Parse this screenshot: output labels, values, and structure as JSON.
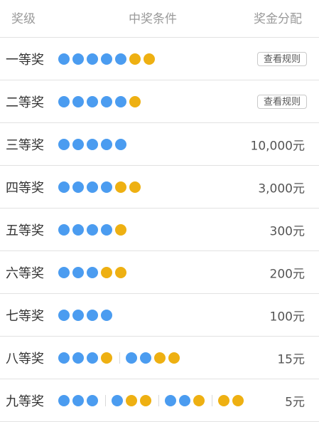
{
  "header": {
    "level": "奖级",
    "condition": "中奖条件",
    "prize": "奖金分配"
  },
  "colors": {
    "blue": "#4b9cf0",
    "gold": "#eeb012"
  },
  "rows": [
    {
      "level": "一等奖",
      "groups": [
        [
          "blue",
          "blue",
          "blue",
          "blue",
          "blue",
          "gold",
          "gold"
        ]
      ],
      "prize": "",
      "button": "查看规则"
    },
    {
      "level": "二等奖",
      "groups": [
        [
          "blue",
          "blue",
          "blue",
          "blue",
          "blue",
          "gold"
        ]
      ],
      "prize": "",
      "button": "查看规则"
    },
    {
      "level": "三等奖",
      "groups": [
        [
          "blue",
          "blue",
          "blue",
          "blue",
          "blue"
        ]
      ],
      "prize": "10,000元",
      "button": ""
    },
    {
      "level": "四等奖",
      "groups": [
        [
          "blue",
          "blue",
          "blue",
          "blue",
          "gold",
          "gold"
        ]
      ],
      "prize": "3,000元",
      "button": ""
    },
    {
      "level": "五等奖",
      "groups": [
        [
          "blue",
          "blue",
          "blue",
          "blue",
          "gold"
        ]
      ],
      "prize": "300元",
      "button": ""
    },
    {
      "level": "六等奖",
      "groups": [
        [
          "blue",
          "blue",
          "blue",
          "gold",
          "gold"
        ]
      ],
      "prize": "200元",
      "button": ""
    },
    {
      "level": "七等奖",
      "groups": [
        [
          "blue",
          "blue",
          "blue",
          "blue"
        ]
      ],
      "prize": "100元",
      "button": ""
    },
    {
      "level": "八等奖",
      "groups": [
        [
          "blue",
          "blue",
          "blue",
          "gold"
        ],
        [
          "blue",
          "blue",
          "gold",
          "gold"
        ]
      ],
      "prize": "15元",
      "button": ""
    },
    {
      "level": "九等奖",
      "groups": [
        [
          "blue",
          "blue",
          "blue"
        ],
        [
          "blue",
          "gold",
          "gold"
        ],
        [
          "blue",
          "blue",
          "gold"
        ],
        [
          "gold",
          "gold"
        ]
      ],
      "prize": "5元",
      "button": ""
    }
  ]
}
